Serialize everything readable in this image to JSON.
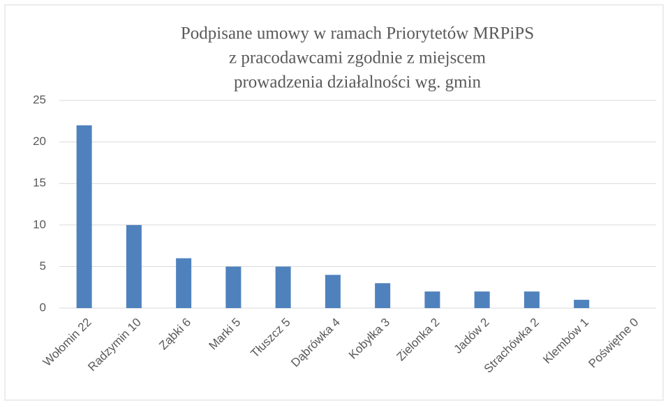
{
  "chart_data": {
    "type": "bar",
    "title": [
      "Podpisane umowy w ramach Priorytetów MRPiPS",
      "z pracodawcami zgodnie z miejscem",
      "prowadzenia działalności wg. gmin"
    ],
    "categories": [
      "Wołomin 22",
      "Radzymin 10",
      "Ząbki 6",
      "Marki 5",
      "Tłuszcz 5",
      "Dąbrówka 4",
      "Kobyłka 3",
      "Zielonka 2",
      "Jadów 2",
      "Strachówka 2",
      "Klembów 1",
      "Poświętne 0"
    ],
    "values": [
      22,
      10,
      6,
      5,
      5,
      4,
      3,
      2,
      2,
      2,
      1,
      0
    ],
    "color": "#4f81bd",
    "ylim": [
      0,
      25
    ],
    "yticks": [
      0,
      5,
      10,
      15,
      20,
      25
    ],
    "grid": true
  }
}
